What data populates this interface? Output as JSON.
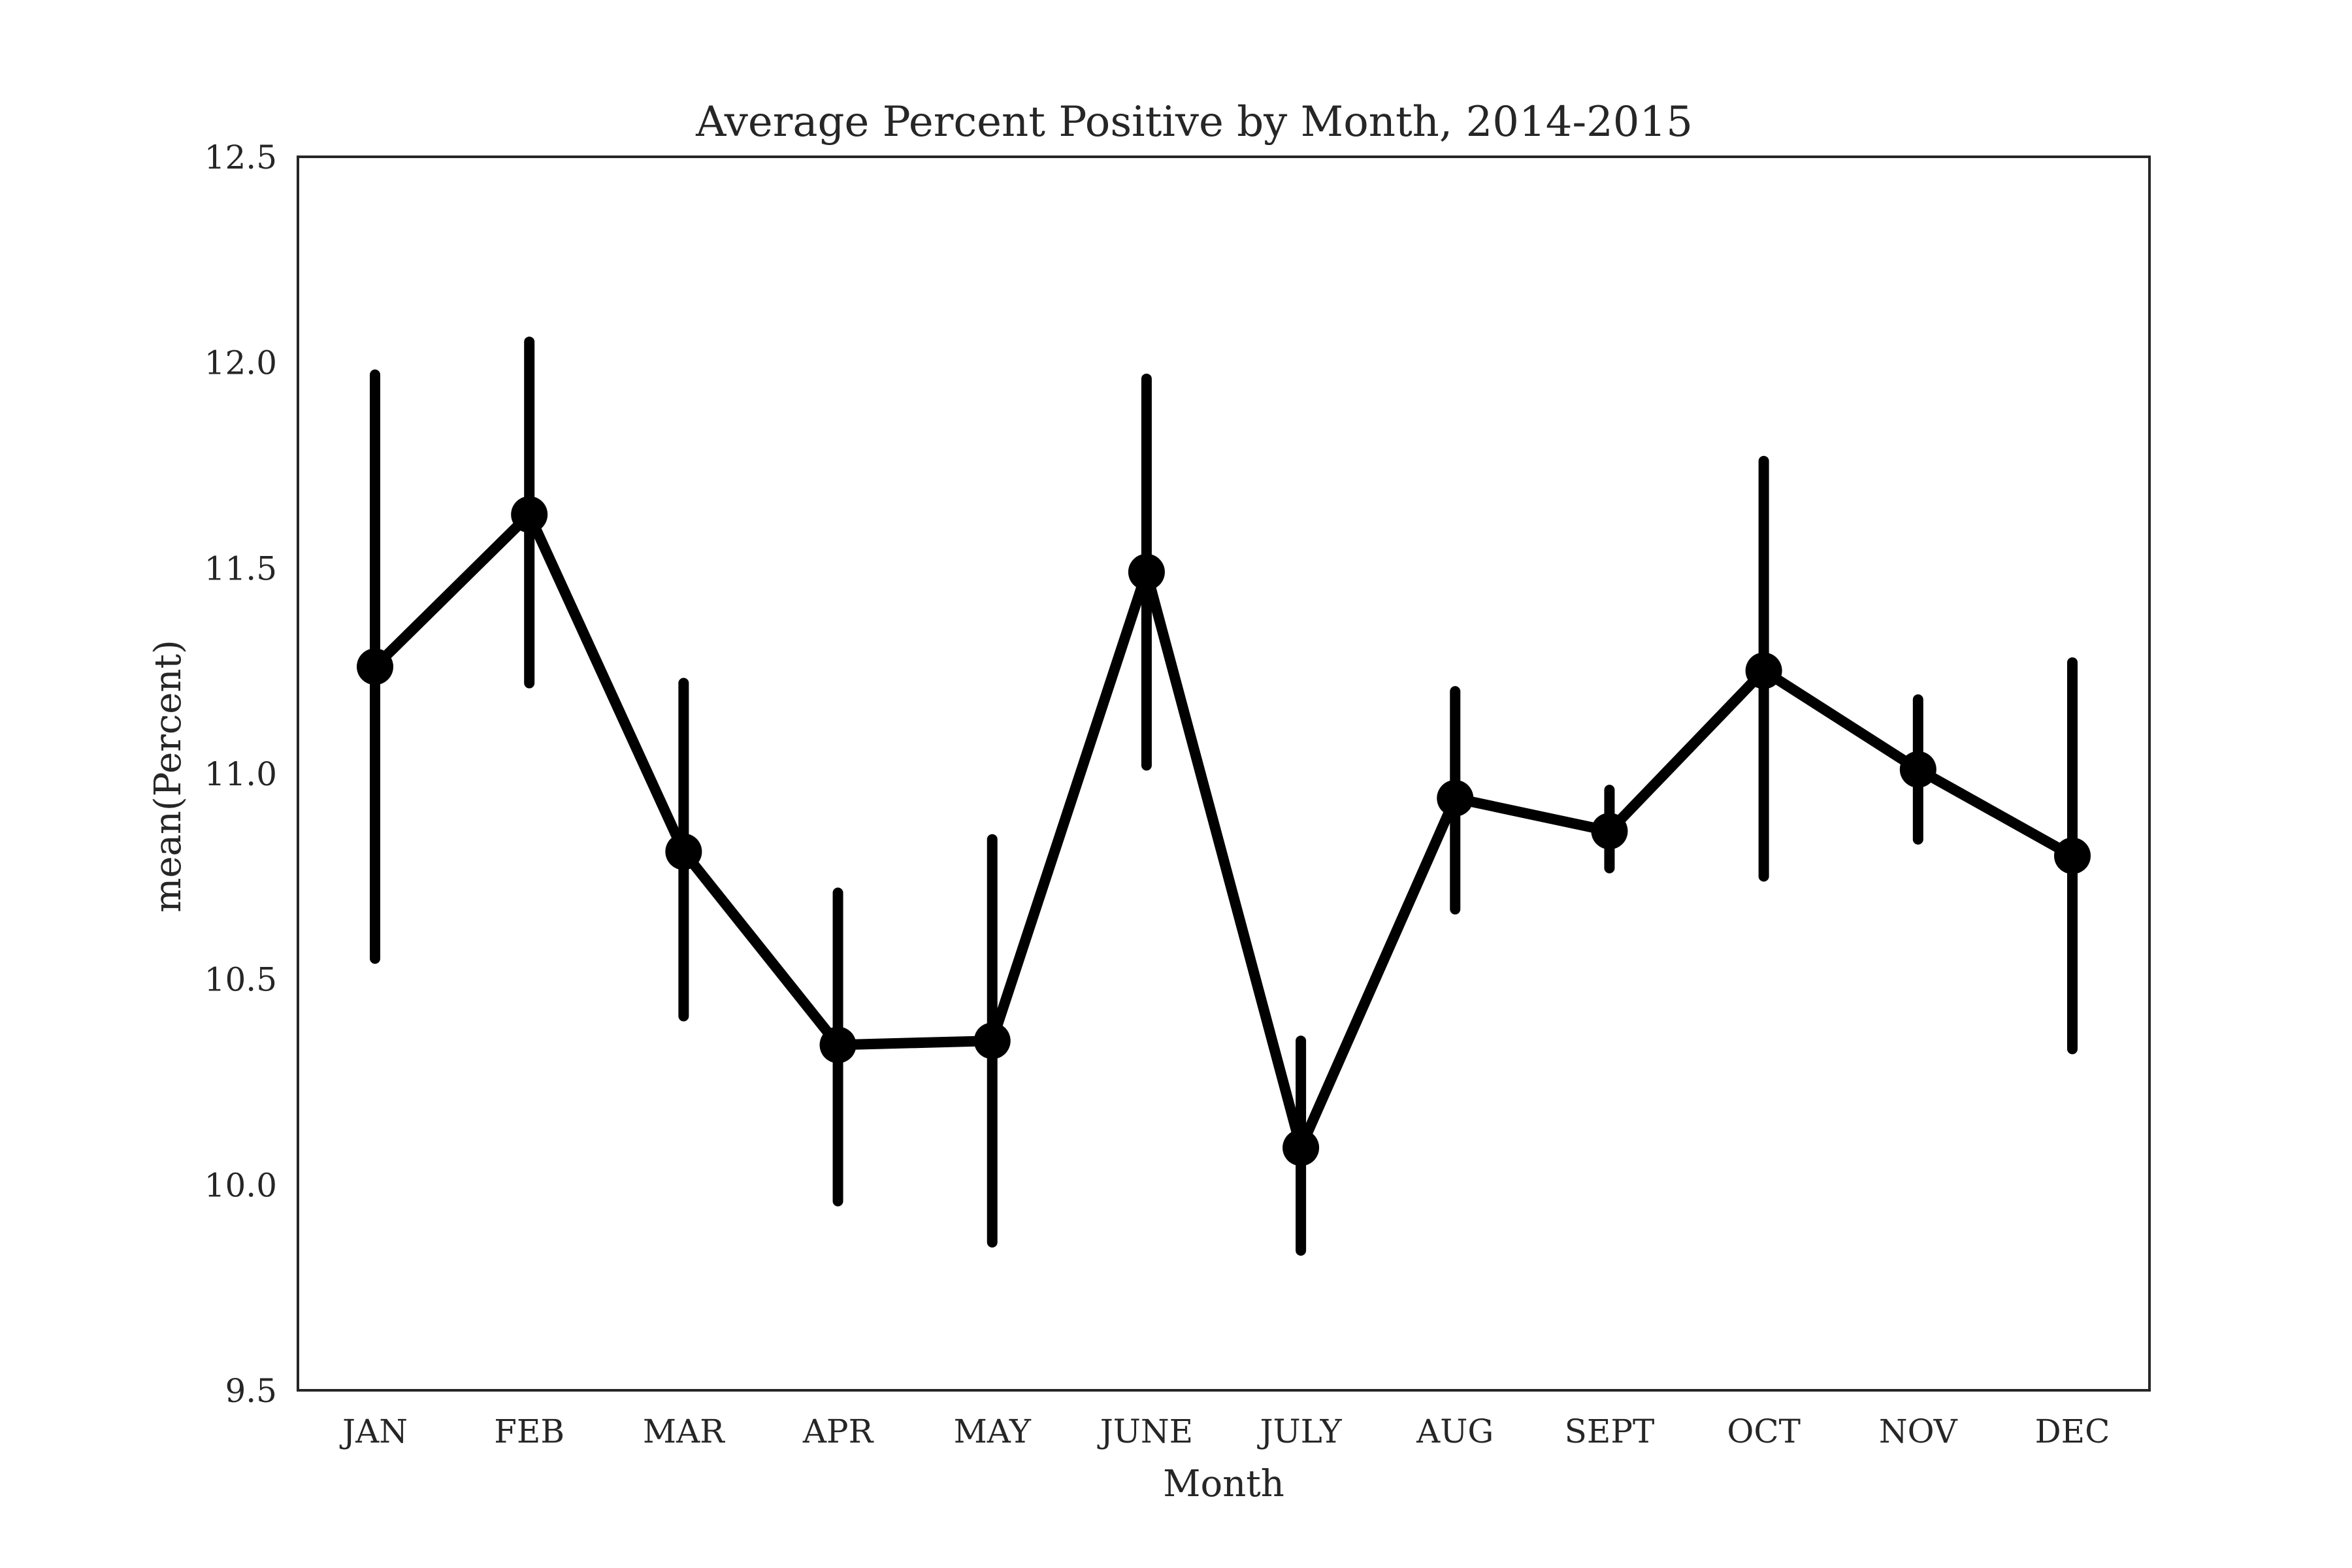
{
  "chart_data": {
    "type": "line",
    "title": "Average Percent Positive by Month, 2014-2015",
    "xlabel": "Month",
    "ylabel": "mean(Percent)",
    "categories": [
      "JAN",
      "FEB",
      "MAR",
      "APR",
      "MAY",
      "JUNE",
      "JULY",
      "AUG",
      "SEPT",
      "OCT",
      "NOV",
      "DEC"
    ],
    "series": [
      {
        "values": [
          11.26,
          11.63,
          10.81,
          10.34,
          10.35,
          11.49,
          10.09,
          10.94,
          10.86,
          11.25,
          11.01,
          10.8
        ],
        "error_low": [
          10.55,
          11.22,
          10.41,
          9.96,
          9.86,
          11.02,
          9.84,
          10.67,
          10.77,
          10.75,
          10.84,
          10.33
        ],
        "error_high": [
          11.97,
          12.05,
          11.22,
          10.71,
          10.84,
          11.96,
          10.35,
          11.2,
          10.96,
          11.76,
          11.18,
          11.27
        ]
      }
    ],
    "ylim": [
      9.5,
      12.5
    ],
    "yticks": [
      "9.5",
      "10.0",
      "10.5",
      "11.0",
      "11.5",
      "12.0",
      "12.5"
    ],
    "grid": false,
    "colors": {
      "line": "#000000",
      "frame": "#262626",
      "text": "#262626"
    }
  }
}
